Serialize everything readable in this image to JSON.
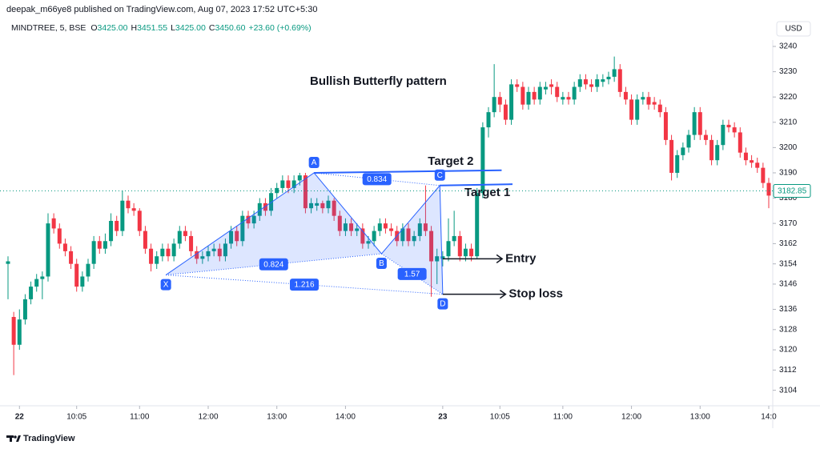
{
  "header": {
    "publisher": "deepak_m66ye8 published on TradingView.com, Aug 07, 2023 17:52 UTC+5:30",
    "symbol": "MINDTREE, 5, BSE",
    "ohlc": [
      {
        "key": "O",
        "text": "3425.00"
      },
      {
        "key": "H",
        "text": "3451.55"
      },
      {
        "key": "L",
        "text": "3425.00"
      },
      {
        "key": "C",
        "text": "3450.60"
      }
    ],
    "change": "+23.60 (+0.69%)",
    "currency": "USD"
  },
  "footer": {
    "brand": "TradingView"
  },
  "chart_data": {
    "type": "candlestick",
    "up_color": "#089981",
    "down_color": "#f23645",
    "candles": [
      [
        3154,
        3157,
        3140,
        3155
      ],
      [
        3133,
        3135,
        3110,
        3122
      ],
      [
        3122,
        3136,
        3120,
        3132
      ],
      [
        3132,
        3142,
        3130,
        3140
      ],
      [
        3140,
        3147,
        3138,
        3145
      ],
      [
        3145,
        3150,
        3143,
        3148
      ],
      [
        3148,
        3151,
        3140,
        3149
      ],
      [
        3149,
        3174,
        3147,
        3170
      ],
      [
        3172,
        3174,
        3166,
        3168
      ],
      [
        3168,
        3170,
        3160,
        3162
      ],
      [
        3162,
        3164,
        3157,
        3159
      ],
      [
        3159,
        3161,
        3152,
        3154
      ],
      [
        3154,
        3156,
        3143,
        3145
      ],
      [
        3145,
        3151,
        3143,
        3149
      ],
      [
        3149,
        3156,
        3147,
        3154
      ],
      [
        3154,
        3165,
        3152,
        3163
      ],
      [
        3163,
        3165,
        3158,
        3160
      ],
      [
        3160,
        3166,
        3158,
        3163
      ],
      [
        3163,
        3174,
        3161,
        3171
      ],
      [
        3171,
        3173,
        3165,
        3167
      ],
      [
        3167,
        3183,
        3165,
        3179
      ],
      [
        3179,
        3181,
        3174,
        3176
      ],
      [
        3176,
        3178,
        3173,
        3175
      ],
      [
        3175,
        3176,
        3165,
        3167
      ],
      [
        3167,
        3169,
        3158,
        3160
      ],
      [
        3160,
        3162,
        3151,
        3154
      ],
      [
        3154,
        3159,
        3152,
        3157
      ],
      [
        3157,
        3162,
        3155,
        3160
      ],
      [
        3160,
        3162,
        3155,
        3157
      ],
      [
        3157,
        3164,
        3155,
        3162
      ],
      [
        3162,
        3169,
        3160,
        3167
      ],
      [
        3167,
        3169,
        3163,
        3165
      ],
      [
        3165,
        3167,
        3157,
        3159
      ],
      [
        3159,
        3161,
        3154,
        3156
      ],
      [
        3156,
        3159,
        3154,
        3157
      ],
      [
        3157,
        3161,
        3155,
        3159
      ],
      [
        3159,
        3162,
        3157,
        3160
      ],
      [
        3160,
        3162,
        3155,
        3157
      ],
      [
        3157,
        3164,
        3155,
        3162
      ],
      [
        3162,
        3169,
        3160,
        3167
      ],
      [
        3167,
        3169,
        3161,
        3163
      ],
      [
        3163,
        3175,
        3161,
        3173
      ],
      [
        3173,
        3175,
        3168,
        3170
      ],
      [
        3170,
        3175,
        3168,
        3173
      ],
      [
        3173,
        3180,
        3171,
        3178
      ],
      [
        3178,
        3180,
        3173,
        3175
      ],
      [
        3175,
        3184,
        3173,
        3182
      ],
      [
        3182,
        3186,
        3180,
        3184
      ],
      [
        3184,
        3189,
        3182,
        3187
      ],
      [
        3187,
        3189,
        3182,
        3184
      ],
      [
        3184,
        3189,
        3182,
        3187
      ],
      [
        3187,
        3190,
        3185,
        3189
      ],
      [
        3189,
        3190,
        3174,
        3176
      ],
      [
        3176,
        3180,
        3174,
        3178
      ],
      [
        3177,
        3180,
        3175,
        3178
      ],
      [
        3178,
        3179,
        3174,
        3176
      ],
      [
        3176,
        3181,
        3174,
        3179
      ],
      [
        3179,
        3180,
        3171,
        3173
      ],
      [
        3173,
        3175,
        3165,
        3167
      ],
      [
        3167,
        3172,
        3165,
        3170
      ],
      [
        3170,
        3172,
        3165,
        3167
      ],
      [
        3167,
        3170,
        3165,
        3168
      ],
      [
        3168,
        3170,
        3160,
        3162
      ],
      [
        3162,
        3165,
        3160,
        3163
      ],
      [
        3163,
        3169,
        3161,
        3167
      ],
      [
        3167,
        3172,
        3165,
        3170
      ],
      [
        3170,
        3172,
        3166,
        3168
      ],
      [
        3168,
        3170,
        3165,
        3167
      ],
      [
        3167,
        3169,
        3161,
        3163
      ],
      [
        3163,
        3170,
        3161,
        3168
      ],
      [
        3168,
        3170,
        3161,
        3163
      ],
      [
        3163,
        3167,
        3161,
        3165
      ],
      [
        3165,
        3172,
        3163,
        3170
      ],
      [
        3170,
        3185,
        3165,
        3167
      ],
      [
        3167,
        3169,
        3141,
        3155
      ],
      [
        3155,
        3160,
        3146,
        3157
      ],
      [
        3156,
        3159,
        3153,
        3157
      ],
      [
        3157,
        3172,
        3155,
        3163
      ],
      [
        3163,
        3175,
        3161,
        3165
      ],
      [
        3165,
        3167,
        3155,
        3157
      ],
      [
        3157,
        3162,
        3155,
        3160
      ],
      [
        3160,
        3162,
        3155,
        3157
      ],
      [
        3157,
        3184,
        3156,
        3182
      ],
      [
        3182,
        3210,
        3180,
        3208
      ],
      [
        3208,
        3216,
        3204,
        3214
      ],
      [
        3214,
        3233,
        3212,
        3220
      ],
      [
        3220,
        3222,
        3214,
        3217
      ],
      [
        3217,
        3219,
        3209,
        3211
      ],
      [
        3211,
        3227,
        3209,
        3225
      ],
      [
        3225,
        3227,
        3222,
        3224
      ],
      [
        3224,
        3226,
        3215,
        3217
      ],
      [
        3217,
        3224,
        3215,
        3222
      ],
      [
        3222,
        3224,
        3217,
        3219
      ],
      [
        3219,
        3226,
        3217,
        3224
      ],
      [
        3223,
        3226,
        3221,
        3224
      ],
      [
        3225,
        3227,
        3221,
        3224
      ],
      [
        3224,
        3226,
        3218,
        3220
      ],
      [
        3219,
        3222,
        3217,
        3220
      ],
      [
        3220,
        3222,
        3217,
        3219
      ],
      [
        3219,
        3226,
        3217,
        3224
      ],
      [
        3224,
        3229,
        3222,
        3227
      ],
      [
        3227,
        3229,
        3223,
        3225
      ],
      [
        3225,
        3227,
        3222,
        3224
      ],
      [
        3224,
        3229,
        3222,
        3227
      ],
      [
        3226,
        3229,
        3224,
        3227
      ],
      [
        3227,
        3230,
        3225,
        3228
      ],
      [
        3228,
        3236,
        3226,
        3231
      ],
      [
        3231,
        3233,
        3220,
        3222
      ],
      [
        3222,
        3224,
        3217,
        3219
      ],
      [
        3219,
        3221,
        3209,
        3211
      ],
      [
        3211,
        3221,
        3209,
        3219
      ],
      [
        3219,
        3222,
        3217,
        3220
      ],
      [
        3220,
        3222,
        3215,
        3217
      ],
      [
        3218,
        3220,
        3215,
        3217
      ],
      [
        3217,
        3219,
        3212,
        3214
      ],
      [
        3214,
        3216,
        3201,
        3203
      ],
      [
        3203,
        3205,
        3187,
        3190
      ],
      [
        3190,
        3199,
        3188,
        3197
      ],
      [
        3197,
        3202,
        3195,
        3200
      ],
      [
        3200,
        3207,
        3198,
        3205
      ],
      [
        3205,
        3216,
        3203,
        3214
      ],
      [
        3214,
        3216,
        3203,
        3205
      ],
      [
        3205,
        3207,
        3201,
        3203
      ],
      [
        3203,
        3205,
        3193,
        3195
      ],
      [
        3195,
        3203,
        3193,
        3201
      ],
      [
        3201,
        3211,
        3199,
        3209
      ],
      [
        3209,
        3211,
        3206,
        3208
      ],
      [
        3208,
        3210,
        3204,
        3206
      ],
      [
        3206,
        3208,
        3196,
        3198
      ],
      [
        3198,
        3200,
        3193,
        3195
      ],
      [
        3195,
        3197,
        3192,
        3194
      ],
      [
        3194,
        3196,
        3190,
        3192
      ],
      [
        3192,
        3194,
        3184,
        3186
      ],
      [
        3186,
        3188,
        3176,
        3181
      ]
    ],
    "xlim": [
      -1.4,
      133.7
    ],
    "xticks": [
      {
        "value": 2,
        "label": "22"
      },
      {
        "value": 12,
        "label": "10:05"
      },
      {
        "value": 23,
        "label": "11:00"
      },
      {
        "value": 35,
        "label": "12:00"
      },
      {
        "value": 47,
        "label": "13:00"
      },
      {
        "value": 59,
        "label": "14:00"
      },
      {
        "value": 76,
        "label": "23"
      },
      {
        "value": 86,
        "label": "10:05"
      },
      {
        "value": 97,
        "label": "11:00"
      },
      {
        "value": 109,
        "label": "12:00"
      },
      {
        "value": 121,
        "label": "13:00"
      },
      {
        "value": 133,
        "label": "14:0"
      }
    ],
    "ylim": [
      3098.5,
      3249.5
    ],
    "yticks": [
      3104,
      3112,
      3120,
      3128,
      3136,
      3146,
      3154,
      3162,
      3170,
      3180,
      3190,
      3200,
      3210,
      3220,
      3230,
      3240
    ],
    "last_price": 3182.85,
    "annotation": "Bullish Butterfly pattern",
    "pattern": {
      "points": [
        {
          "label": "X",
          "x": 27.6,
          "price": 3149.6
        },
        {
          "label": "A",
          "x": 53.5,
          "price": 3190
        },
        {
          "label": "B",
          "x": 65.3,
          "price": 3158
        },
        {
          "label": "C",
          "x": 75.5,
          "price": 3185
        },
        {
          "label": "D",
          "x": 76,
          "price": 3142
        }
      ],
      "ratios": [
        "0.824",
        "0.834",
        "1.216",
        "1.57"
      ]
    },
    "targets": [
      {
        "label": "Target 2",
        "x": [
          53.5,
          86.3
        ],
        "price": [
          3190,
          3191
        ]
      },
      {
        "label": "Target 1",
        "x": [
          75.5,
          88.2
        ],
        "price": [
          3185,
          3185.5
        ]
      }
    ],
    "levels": [
      {
        "label": "Entry",
        "x": [
          76,
          86.4
        ],
        "price": 3156
      },
      {
        "label": "Stop loss",
        "x": [
          76,
          87
        ],
        "price": 3142
      }
    ]
  }
}
